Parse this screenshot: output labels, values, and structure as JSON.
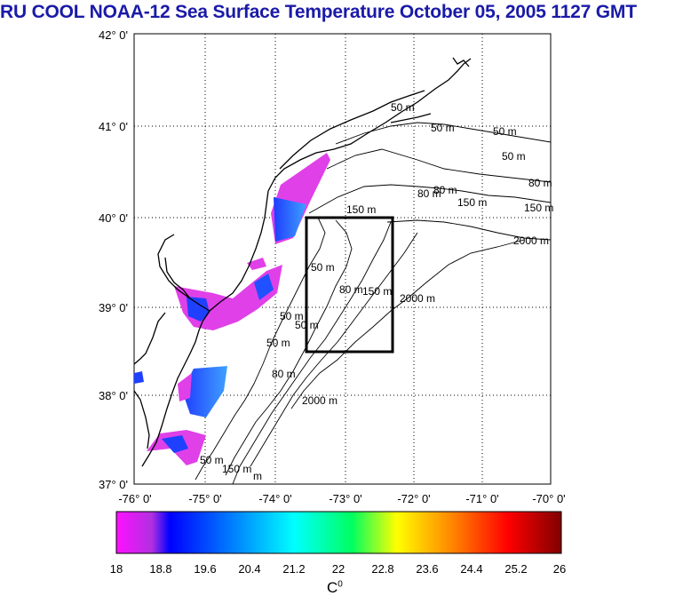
{
  "title": "RU COOL  NOAA-12 Sea Surface Temperature October 05, 2005 1127 GMT",
  "map": {
    "lat_labels": [
      "42° 0'",
      "41° 0'",
      "40° 0'",
      "39° 0'",
      "38° 0'",
      "37° 0'"
    ],
    "lon_labels": [
      "-76° 0'",
      "-75° 0'",
      "-74° 0'",
      "-73° 0'",
      "-72° 0'",
      "-71° 0'",
      "-70° 0'"
    ],
    "lat_range": [
      37,
      42
    ],
    "lon_range": [
      -76,
      -70
    ],
    "contour_labels": [
      "50 m",
      "50 m",
      "50 m",
      "50 m",
      "80 m",
      "80 m",
      "80 m",
      "150 m",
      "150 m",
      "150 m",
      "2000 m",
      "50 m",
      "80 m",
      "150 m",
      "2000 m",
      "50 m",
      "50 m",
      "50 m",
      "80 m",
      "2000 m",
      "50 m",
      "150 m",
      "m"
    ],
    "box": {
      "lon": [
        -73.5,
        -72.2
      ],
      "lat": [
        38.5,
        40.0
      ]
    }
  },
  "colorbar": {
    "ticks": [
      "18",
      "18.8",
      "19.6",
      "20.4",
      "21.2",
      "22",
      "22.8",
      "23.6",
      "24.4",
      "25.2",
      "26"
    ],
    "unit_base": "C",
    "unit_sup": "0",
    "colors": [
      "#ff10ff",
      "#0000ff",
      "#00a0ff",
      "#00ffff",
      "#00ff80",
      "#ffff00",
      "#ff8000",
      "#ff0000",
      "#800000"
    ]
  }
}
